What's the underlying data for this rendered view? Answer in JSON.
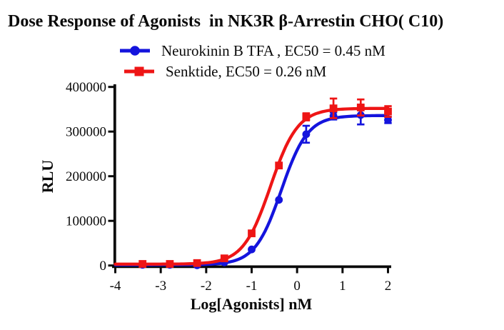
{
  "chart_data": {
    "type": "line",
    "title": "Dose Response of Agonists  in NK3R β-Arrestin CHO( C10)",
    "xlabel": "Log[Agonists] nM",
    "ylabel": "RLU",
    "xlim": [
      -4,
      2
    ],
    "ylim": [
      0,
      400000
    ],
    "xticks": [
      -4,
      -3,
      -2,
      -1,
      0,
      1,
      2
    ],
    "yticks": [
      0,
      100000,
      200000,
      300000,
      400000
    ],
    "ytick_labels": [
      "0",
      "100000",
      "200000",
      "300000",
      "400000"
    ],
    "grid": false,
    "legend_position": "top-center",
    "axis_color": "#0a0a0a",
    "series": [
      {
        "name": "Neurokinin B TFA , EC50 = 0.45 nM",
        "color": "#1414dd",
        "marker": "circle",
        "ec50_nM": 0.45,
        "fit": {
          "bottom": 1500,
          "top": 336000,
          "logEC50": -0.347,
          "hill": 1.5
        },
        "x": [
          -3.4,
          -2.8,
          -2.2,
          -1.6,
          -1.0,
          -0.4,
          0.2,
          0.8,
          1.4,
          2.0
        ],
        "y": [
          1500,
          1500,
          500,
          7000,
          36000,
          147000,
          294000,
          335000,
          337000,
          326000
        ],
        "err": [
          0,
          0,
          0,
          0,
          0,
          0,
          19000,
          8000,
          21000,
          7000
        ]
      },
      {
        "name": "Senktide, EC50 = 0.26 nM",
        "color": "#ee1515",
        "marker": "square",
        "ec50_nM": 0.26,
        "fit": {
          "bottom": 3000,
          "top": 352000,
          "logEC50": -0.585,
          "hill": 1.45
        },
        "x": [
          -3.4,
          -2.8,
          -2.2,
          -1.6,
          -1.0,
          -0.4,
          0.2,
          0.8,
          1.4,
          2.0
        ],
        "y": [
          3500,
          3500,
          5500,
          16000,
          72000,
          224000,
          333000,
          352000,
          354000,
          345000
        ],
        "err": [
          0,
          0,
          0,
          0,
          0,
          0,
          8000,
          22000,
          18000,
          12000
        ]
      }
    ]
  }
}
